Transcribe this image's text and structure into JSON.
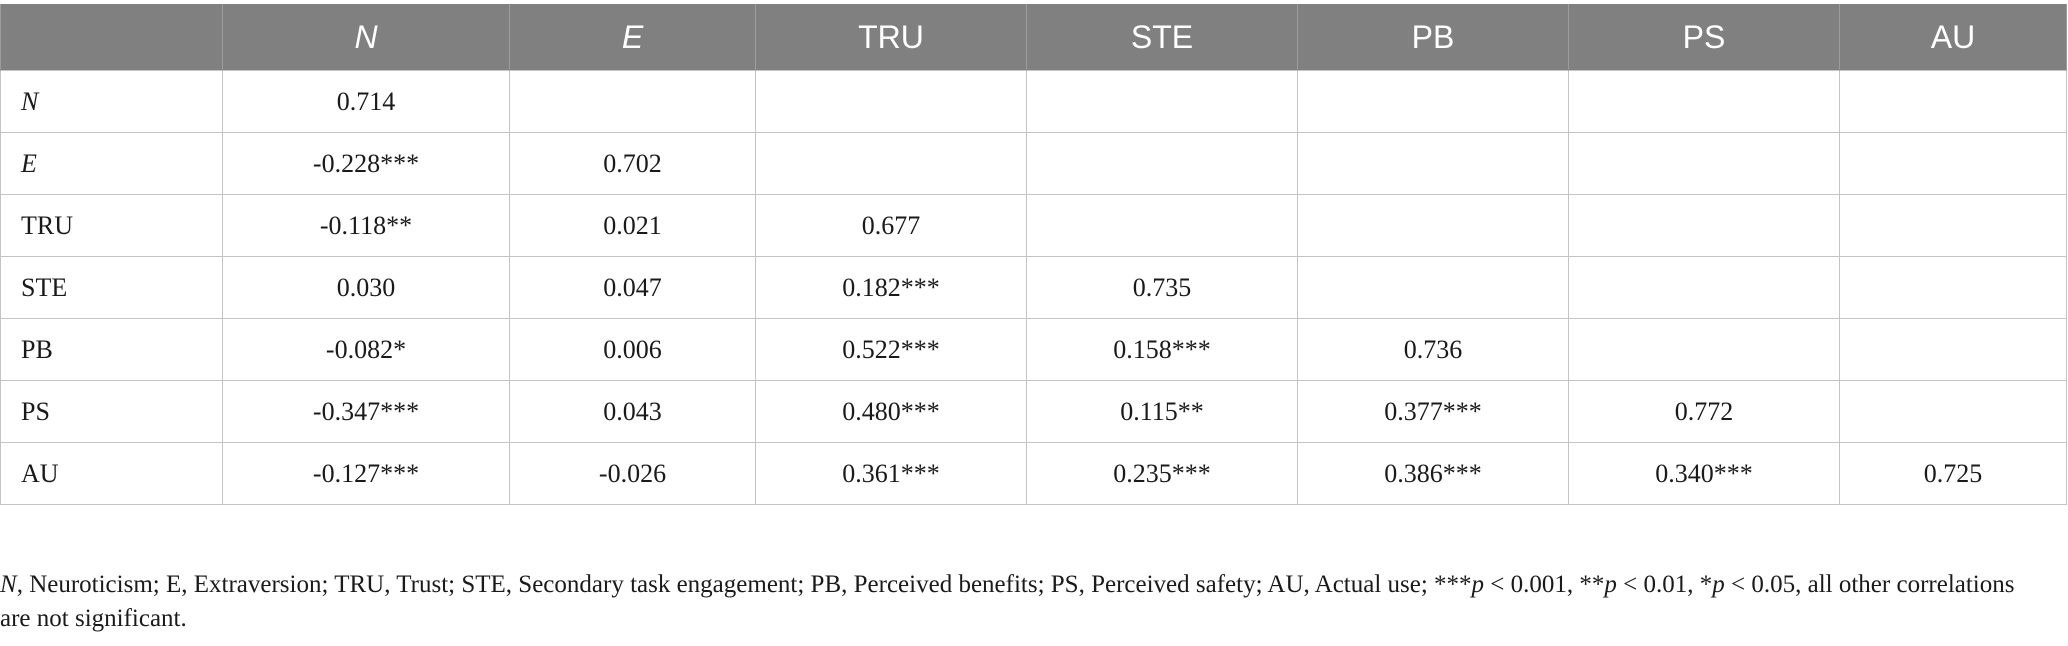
{
  "table": {
    "columns": [
      "",
      "N",
      "E",
      "TRU",
      "STE",
      "PB",
      "PS",
      "AU"
    ],
    "italic_columns": [
      1,
      2
    ],
    "rows": [
      {
        "label": "N",
        "italic": true,
        "cells": [
          "0.714",
          "",
          "",
          "",
          "",
          "",
          ""
        ]
      },
      {
        "label": "E",
        "italic": true,
        "cells": [
          "-0.228***",
          "0.702",
          "",
          "",
          "",
          "",
          ""
        ]
      },
      {
        "label": "TRU",
        "italic": false,
        "cells": [
          "-0.118**",
          "0.021",
          "0.677",
          "",
          "",
          "",
          ""
        ]
      },
      {
        "label": "STE",
        "italic": false,
        "cells": [
          "0.030",
          "0.047",
          "0.182***",
          "0.735",
          "",
          "",
          ""
        ]
      },
      {
        "label": "PB",
        "italic": false,
        "cells": [
          "-0.082*",
          "0.006",
          "0.522***",
          "0.158***",
          "0.736",
          "",
          ""
        ]
      },
      {
        "label": "PS",
        "italic": false,
        "cells": [
          "-0.347***",
          "0.043",
          "0.480***",
          "0.115**",
          "0.377***",
          "0.772",
          ""
        ]
      },
      {
        "label": "AU",
        "italic": false,
        "cells": [
          "-0.127***",
          "-0.026",
          "0.361***",
          "0.235***",
          "0.386***",
          "0.340***",
          "0.725"
        ]
      }
    ]
  },
  "footnote": {
    "n": "N",
    "part1": ", Neuroticism; E, Extraversion; TRU, Trust; STE, Secondary task engagement; PB, Perceived benefits; PS, Perceived safety; AU, Actual use; ***",
    "p1": "p",
    "part2": " < 0.001, **",
    "p2": "p",
    "part3": " < 0.01, *",
    "p3": "p",
    "part4": " < 0.05, all other correlations are not significant."
  },
  "colors": {
    "header_bg": "#808080",
    "header_text": "#ffffff",
    "grid": "#c4c4c4"
  }
}
